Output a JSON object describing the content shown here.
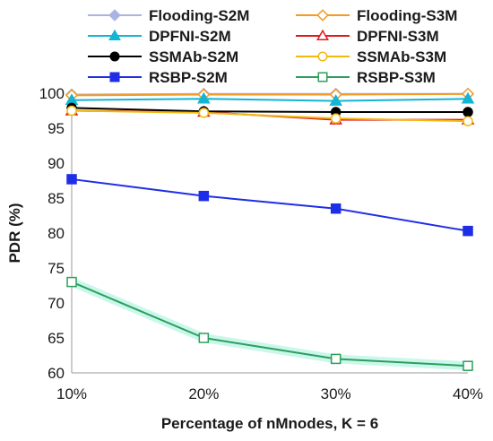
{
  "chart_data": {
    "type": "line",
    "title": "",
    "xlabel": "Percentage of nMnodes, K = 6",
    "ylabel": "PDR (%)",
    "categories": [
      "10%",
      "20%",
      "30%",
      "40%"
    ],
    "ylim": [
      60,
      100
    ],
    "yticks": [
      60,
      65,
      70,
      75,
      80,
      85,
      90,
      95,
      100
    ],
    "grid": "none",
    "legend_placement": "top",
    "series": [
      {
        "name": "Flooding-S2M",
        "values": [
          99.8,
          99.9,
          99.9,
          99.9
        ],
        "color": "#a9b4e0",
        "marker": "diamond",
        "filled": true
      },
      {
        "name": "Flooding-S3M",
        "values": [
          99.7,
          99.8,
          99.8,
          99.9
        ],
        "color": "#f59a23",
        "marker": "diamond",
        "filled": false
      },
      {
        "name": "DPFNI-S2M",
        "values": [
          99.0,
          99.2,
          98.9,
          99.2
        ],
        "color": "#12b5d6",
        "marker": "triangle",
        "filled": true
      },
      {
        "name": "DPFNI-S3M",
        "values": [
          97.5,
          97.3,
          96.2,
          96.2
        ],
        "color": "#e01b1b",
        "marker": "triangle",
        "filled": false
      },
      {
        "name": "SSMAb-S2M",
        "values": [
          97.9,
          97.4,
          97.3,
          97.3
        ],
        "color": "#000000",
        "marker": "circle",
        "filled": true
      },
      {
        "name": "SSMAb-S3M",
        "values": [
          97.5,
          97.2,
          96.4,
          96.0
        ],
        "color": "#f2b90f",
        "marker": "circle",
        "filled": false
      },
      {
        "name": "RSBP-S2M",
        "values": [
          87.7,
          85.3,
          83.5,
          80.3
        ],
        "color": "#1f2ee6",
        "marker": "square",
        "filled": true
      },
      {
        "name": "RSBP-S3M",
        "values": [
          73.0,
          65.0,
          62.0,
          61.0
        ],
        "color": "#2e9e5b",
        "marker": "square",
        "filled": false
      }
    ]
  }
}
